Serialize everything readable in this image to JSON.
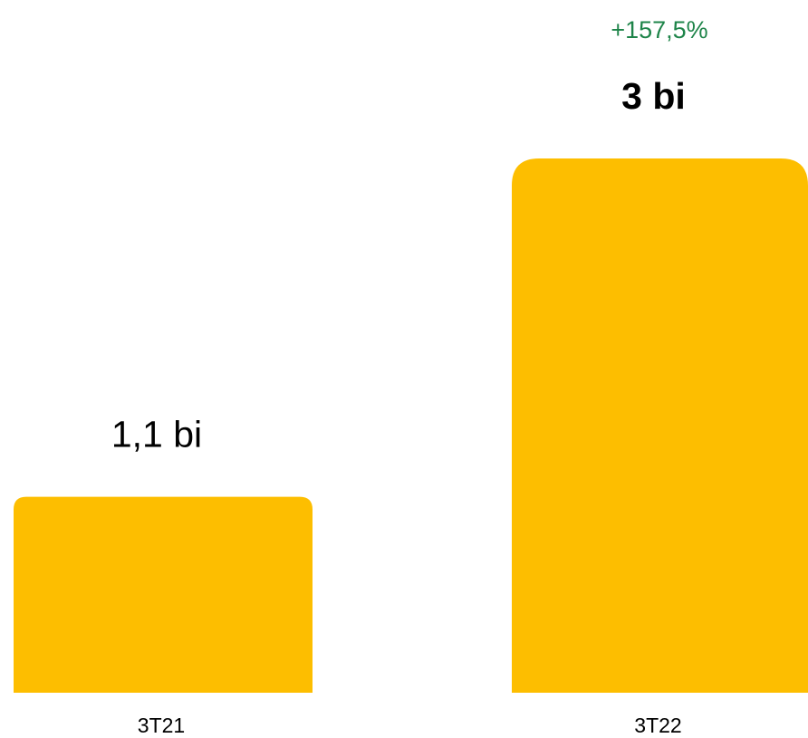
{
  "chart_data": {
    "type": "bar",
    "categories": [
      "3T21",
      "3T22"
    ],
    "values": [
      1.1,
      3
    ],
    "value_labels": [
      "1,1 bi",
      "3 bi"
    ],
    "color": "#fdbe00",
    "ylim": [
      0,
      3
    ],
    "annotation": "+157,5%"
  }
}
